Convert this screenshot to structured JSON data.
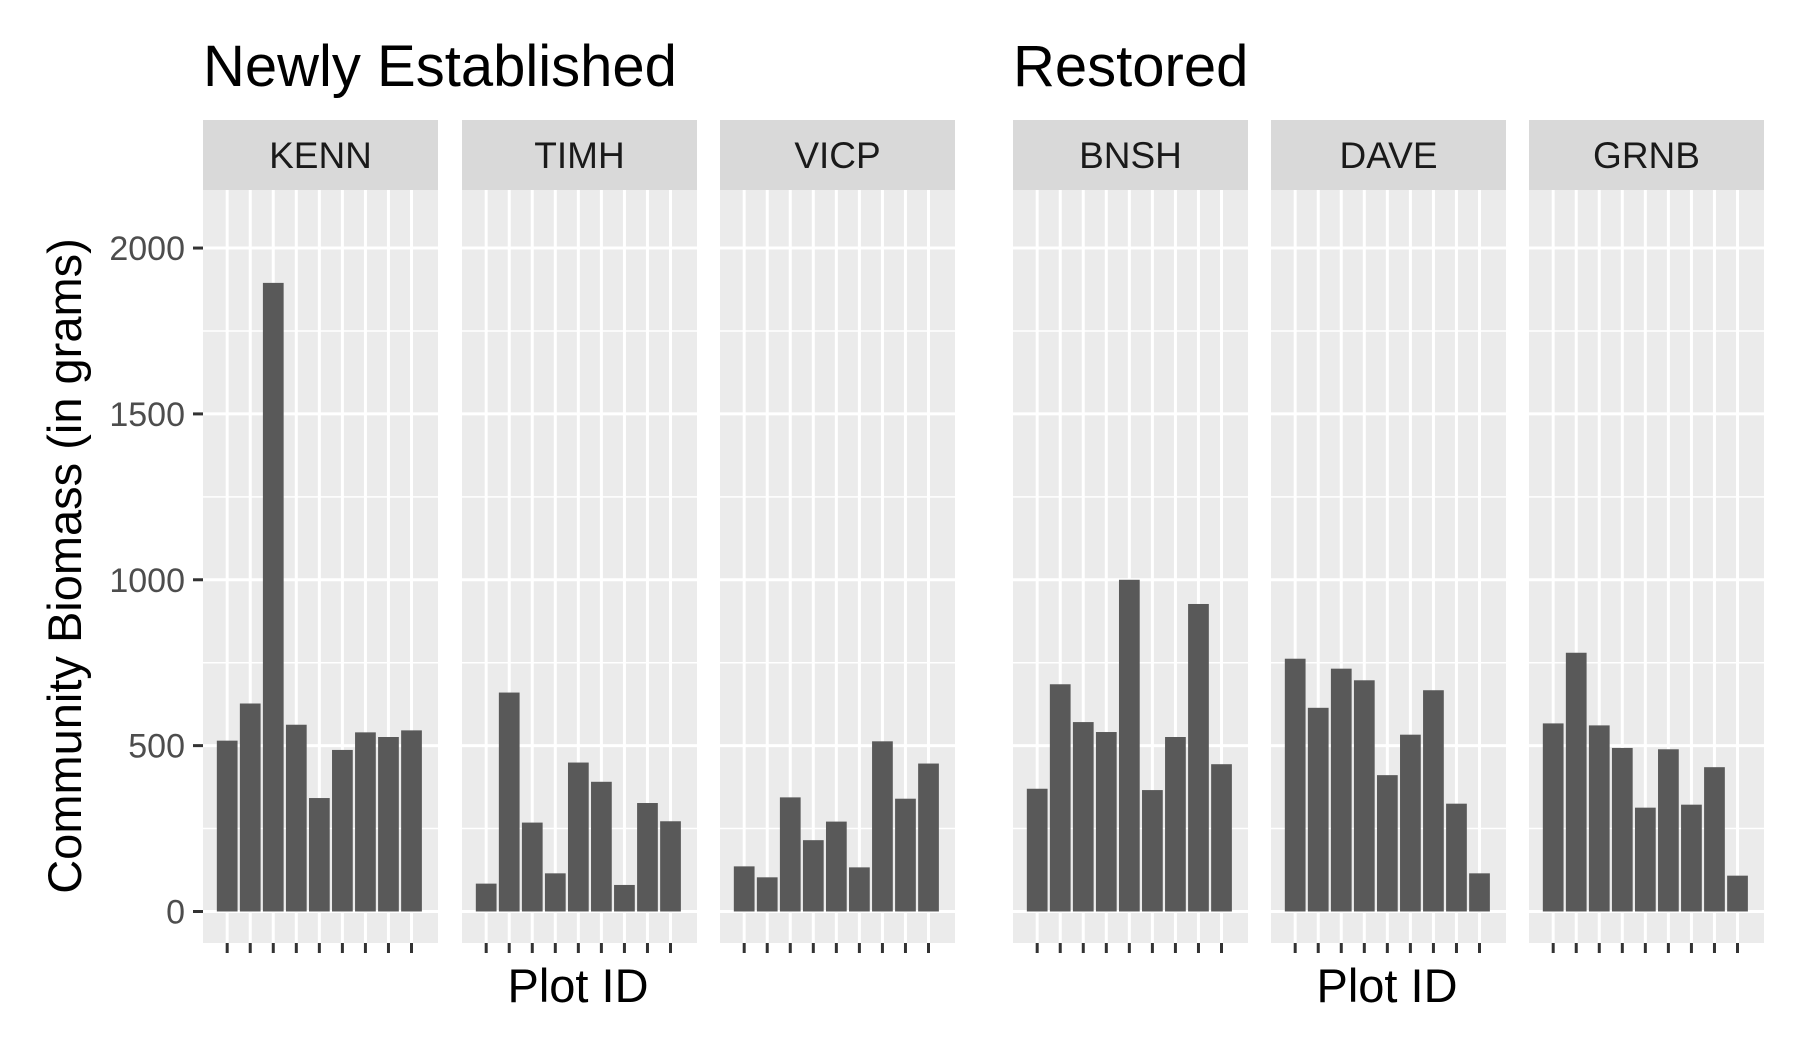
{
  "chart_data": [
    {
      "type": "bar",
      "title": "Newly Established",
      "xlabel": "Plot ID",
      "ylabel": "Community Biomass (in grams)",
      "ylim": [
        -95,
        2175
      ],
      "yticks": [
        0,
        500,
        1000,
        1500,
        2000
      ],
      "grid": true,
      "x_tick_labels_shown": false,
      "bar_color": "#595959",
      "panel_background": "#ebebeb",
      "strip_background": "#d9d9d9",
      "panels": [
        {
          "site": "KENN",
          "values": [
            515,
            627,
            1895,
            563,
            342,
            487,
            540,
            526,
            546
          ]
        },
        {
          "site": "TIMH",
          "values": [
            84,
            660,
            268,
            115,
            449,
            391,
            80,
            327,
            272
          ]
        },
        {
          "site": "VICP",
          "values": [
            136,
            103,
            344,
            215,
            271,
            133,
            513,
            340,
            446
          ]
        }
      ]
    },
    {
      "type": "bar",
      "title": "Restored",
      "xlabel": "Plot ID",
      "ylabel": "",
      "ylim": [
        -95,
        2175
      ],
      "yticks": [
        0,
        500,
        1000,
        1500,
        2000
      ],
      "grid": true,
      "x_tick_labels_shown": false,
      "bar_color": "#595959",
      "panel_background": "#ebebeb",
      "strip_background": "#d9d9d9",
      "panels": [
        {
          "site": "BNSH",
          "values": [
            370,
            685,
            571,
            541,
            1000,
            366,
            526,
            927,
            444
          ]
        },
        {
          "site": "DAVE",
          "values": [
            762,
            614,
            732,
            697,
            411,
            533,
            667,
            325,
            115
          ]
        },
        {
          "site": "GRNB",
          "values": [
            567,
            780,
            561,
            493,
            313,
            489,
            322,
            435,
            108
          ]
        }
      ]
    }
  ]
}
